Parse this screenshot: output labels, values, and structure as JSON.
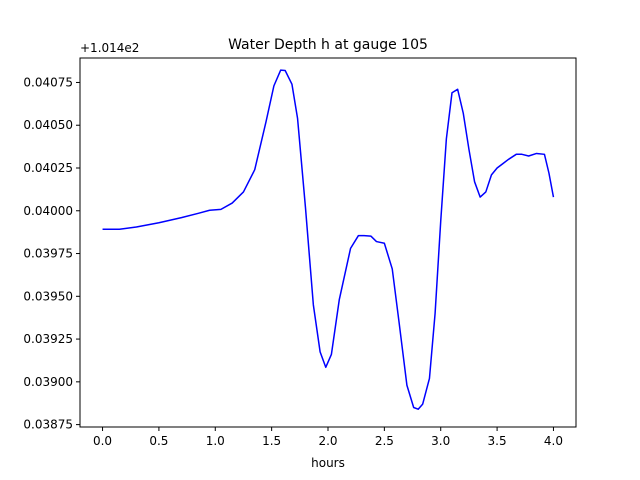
{
  "chart_data": {
    "type": "line",
    "title": "Water Depth h at gauge 105",
    "xlabel": "hours",
    "ylabel": "",
    "y_offset_label": "+1.014e2",
    "xlim": [
      -0.2,
      4.2
    ],
    "ylim": [
      0.038736,
      0.040893
    ],
    "x_ticks": [
      0.0,
      0.5,
      1.0,
      1.5,
      2.0,
      2.5,
      3.0,
      3.5,
      4.0
    ],
    "x_tick_labels": [
      "0.0",
      "0.5",
      "1.0",
      "1.5",
      "2.0",
      "2.5",
      "3.0",
      "3.5",
      "4.0"
    ],
    "y_ticks": [
      0.03875,
      0.039,
      0.03925,
      0.0395,
      0.03975,
      0.04,
      0.04025,
      0.0405,
      0.04075
    ],
    "y_tick_labels": [
      "0.03875",
      "0.03900",
      "0.03925",
      "0.03950",
      "0.03975",
      "0.04000",
      "0.04025",
      "0.04050",
      "0.04075"
    ],
    "grid": false,
    "series": [
      {
        "color": "#0000ff",
        "x": [
          0.0,
          0.15,
          0.3,
          0.5,
          0.7,
          0.85,
          0.95,
          1.05,
          1.15,
          1.25,
          1.35,
          1.45,
          1.52,
          1.58,
          1.62,
          1.68,
          1.73,
          1.8,
          1.87,
          1.93,
          1.98,
          2.03,
          2.1,
          2.2,
          2.27,
          2.32,
          2.38,
          2.43,
          2.5,
          2.57,
          2.63,
          2.7,
          2.76,
          2.8,
          2.84,
          2.9,
          2.95,
          3.0,
          3.05,
          3.1,
          3.15,
          3.2,
          3.25,
          3.3,
          3.35,
          3.4,
          3.45,
          3.5,
          3.55,
          3.6,
          3.67,
          3.72,
          3.78,
          3.85,
          3.92,
          3.96,
          4.0
        ],
        "y": [
          0.039892,
          0.039892,
          0.039905,
          0.03993,
          0.03996,
          0.039985,
          0.040003,
          0.040008,
          0.040045,
          0.04011,
          0.04024,
          0.04052,
          0.04073,
          0.040822,
          0.04082,
          0.04074,
          0.04054,
          0.04002,
          0.03945,
          0.039175,
          0.039085,
          0.03916,
          0.03948,
          0.03978,
          0.039855,
          0.039855,
          0.039852,
          0.03982,
          0.03981,
          0.03966,
          0.03935,
          0.03898,
          0.03885,
          0.03884,
          0.03887,
          0.03902,
          0.0394,
          0.03994,
          0.04042,
          0.04069,
          0.04071,
          0.04057,
          0.04036,
          0.04017,
          0.04008,
          0.04011,
          0.04021,
          0.04025,
          0.040275,
          0.0403,
          0.04033,
          0.04033,
          0.04032,
          0.040335,
          0.04033,
          0.04022,
          0.04008
        ]
      }
    ]
  }
}
